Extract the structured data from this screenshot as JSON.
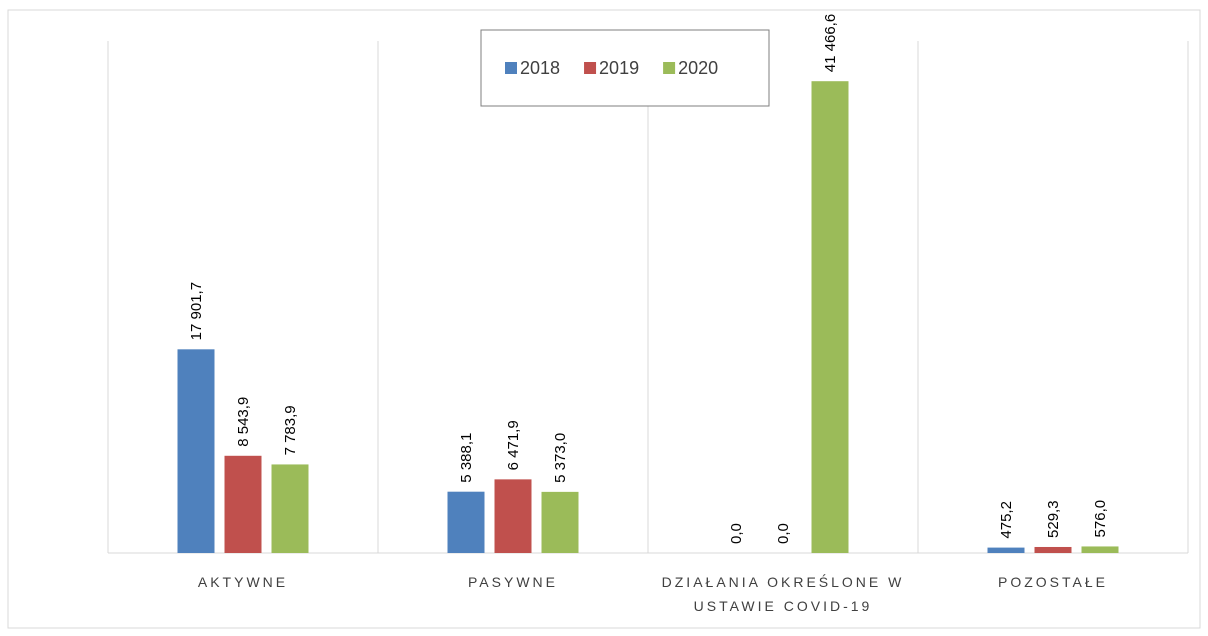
{
  "chart_data": {
    "type": "bar",
    "categories": [
      "AKTYWNE",
      "PASYWNE",
      "DZIAŁANIA OKREŚLONE W USTAWIE COVID-19",
      "POZOSTAŁE"
    ],
    "series": [
      {
        "name": "2018",
        "color": "#4f81bd",
        "values": [
          17901.7,
          5388.1,
          0.0,
          475.2
        ],
        "value_labels": [
          "17 901,7",
          "5 388,1",
          "0,0",
          "475,2"
        ]
      },
      {
        "name": "2019",
        "color": "#c0504d",
        "values": [
          8543.9,
          6471.9,
          0.0,
          529.3
        ],
        "value_labels": [
          "8 543,9",
          "6 471,9",
          "0,0",
          "529,3"
        ]
      },
      {
        "name": "2020",
        "color": "#9bbb59",
        "values": [
          7783.9,
          5373.0,
          41466.6,
          576.0
        ],
        "value_labels": [
          "7 783,9",
          "5 373,0",
          "41 466,6",
          "576,0"
        ]
      }
    ],
    "ylim": [
      0,
      45000
    ]
  }
}
